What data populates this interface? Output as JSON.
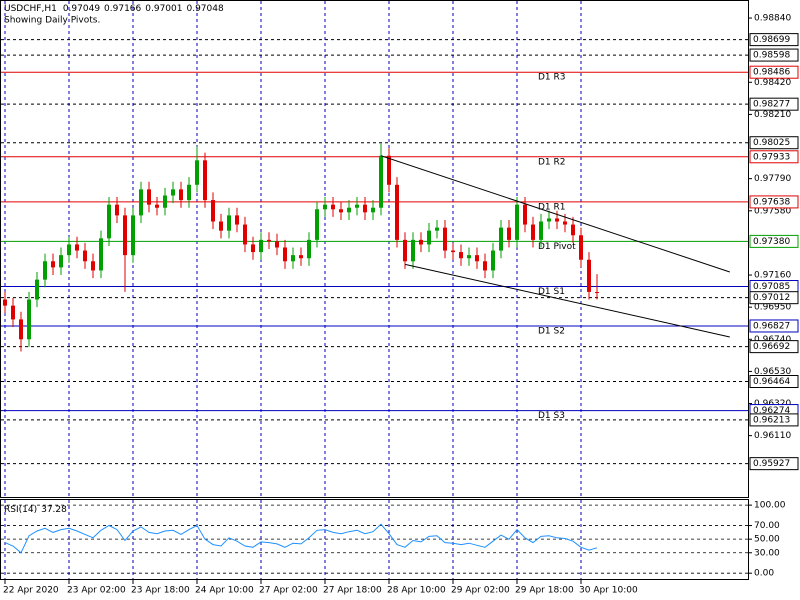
{
  "chart_data": {
    "type": "candlestick",
    "title": "USDCHF,H1",
    "subtitle": "Showing Daily Pivots.",
    "up_color": "#00a000",
    "down_color": "#e00000",
    "grid_color": "#0000c0",
    "vertical_grid": true,
    "xlim": [
      -0.625,
      92.875
    ],
    "xticks": [
      {
        "value": 0,
        "label": "22 Apr 2020"
      },
      {
        "value": 8,
        "label": "23 Apr 02:00"
      },
      {
        "value": 16,
        "label": "23 Apr 18:00"
      },
      {
        "value": 24,
        "label": "24 Apr 10:00"
      },
      {
        "value": 32,
        "label": "27 Apr 02:00"
      },
      {
        "value": 40,
        "label": "27 Apr 18:00"
      },
      {
        "value": 48,
        "label": "28 Apr 10:00"
      },
      {
        "value": 56,
        "label": "29 Apr 02:00"
      },
      {
        "value": 64,
        "label": "29 Apr 18:00"
      },
      {
        "value": 72,
        "label": "30 Apr 10:00"
      }
    ],
    "ylim": [
      0.95709,
      0.98958
    ],
    "yticks": [
      {
        "value": 0.9884,
        "label": "0.98840"
      },
      {
        "value": 0.9842,
        "label": "0.98420"
      },
      {
        "value": 0.9821,
        "label": "0.98210"
      },
      {
        "value": 0.9779,
        "label": "0.97790"
      },
      {
        "value": 0.9758,
        "label": "0.97580"
      },
      {
        "value": 0.9716,
        "label": "0.97160"
      },
      {
        "value": 0.9695,
        "label": "0.96950"
      },
      {
        "value": 0.9674,
        "label": "0.96740"
      },
      {
        "value": 0.9653,
        "label": "0.96530"
      },
      {
        "value": 0.9632,
        "label": "0.96320"
      },
      {
        "value": 0.9611,
        "label": "0.96110"
      }
    ],
    "open": [
      0.97,
      0.9696,
      0.9687,
      0.9674,
      0.97,
      0.9713,
      0.9725,
      0.9721,
      0.9729,
      0.9736,
      0.9732,
      0.9725,
      0.9719,
      0.974,
      0.9762,
      0.9755,
      0.9729,
      0.9755,
      0.9772,
      0.9762,
      0.976,
      0.9768,
      0.9772,
      0.9765,
      0.9775,
      0.9791,
      0.9765,
      0.9751,
      0.9745,
      0.9755,
      0.9749,
      0.9736,
      0.9731,
      0.9739,
      0.9738,
      0.9734,
      0.9725,
      0.9729,
      0.9727,
      0.9739,
      0.9759,
      0.9762,
      0.9759,
      0.9757,
      0.976,
      0.9762,
      0.9757,
      0.976,
      0.9794,
      0.9775,
      0.9739,
      0.9725,
      0.9739,
      0.9736,
      0.9745,
      0.9747,
      0.9732,
      0.9731,
      0.9727,
      0.9729,
      0.9725,
      0.9719,
      0.9732,
      0.9747,
      0.9739,
      0.9762,
      0.9749,
      0.9739,
      0.9751,
      0.9753,
      0.9751,
      0.9749,
      0.9742,
      0.9726,
      0.97049
    ],
    "high": [
      0.9705,
      0.9701,
      0.9692,
      0.9705,
      0.9718,
      0.973,
      0.973,
      0.9734,
      0.9741,
      0.9741,
      0.9737,
      0.973,
      0.9745,
      0.9767,
      0.9767,
      0.976,
      0.976,
      0.9777,
      0.9777,
      0.9767,
      0.9773,
      0.9777,
      0.9777,
      0.978,
      0.98,
      0.9796,
      0.977,
      0.9756,
      0.976,
      0.976,
      0.9754,
      0.9741,
      0.9744,
      0.9744,
      0.9743,
      0.9739,
      0.9734,
      0.9734,
      0.9744,
      0.9764,
      0.9767,
      0.9767,
      0.9764,
      0.9765,
      0.9767,
      0.9767,
      0.9765,
      0.9802,
      0.9799,
      0.978,
      0.9744,
      0.9744,
      0.9744,
      0.975,
      0.9752,
      0.9752,
      0.9737,
      0.9736,
      0.9734,
      0.9734,
      0.973,
      0.9737,
      0.9752,
      0.9752,
      0.9767,
      0.9767,
      0.9754,
      0.9756,
      0.9758,
      0.9758,
      0.9756,
      0.9754,
      0.9747,
      0.9731,
      0.97166
    ],
    "low": [
      0.9691,
      0.9682,
      0.9666,
      0.9669,
      0.9695,
      0.9708,
      0.9716,
      0.9716,
      0.9724,
      0.9727,
      0.972,
      0.9714,
      0.9714,
      0.9735,
      0.975,
      0.9705,
      0.9724,
      0.975,
      0.9757,
      0.9755,
      0.9755,
      0.9763,
      0.976,
      0.976,
      0.977,
      0.976,
      0.9746,
      0.974,
      0.974,
      0.9744,
      0.9731,
      0.9726,
      0.9726,
      0.9733,
      0.9729,
      0.972,
      0.972,
      0.9722,
      0.9722,
      0.9734,
      0.9754,
      0.9754,
      0.9752,
      0.9752,
      0.9755,
      0.9752,
      0.9752,
      0.9755,
      0.977,
      0.9734,
      0.972,
      0.972,
      0.9731,
      0.9731,
      0.974,
      0.9727,
      0.9726,
      0.9722,
      0.9722,
      0.972,
      0.9714,
      0.9714,
      0.9727,
      0.9734,
      0.9734,
      0.9744,
      0.9734,
      0.9734,
      0.9746,
      0.9746,
      0.9744,
      0.9737,
      0.9721,
      0.97,
      0.97001
    ],
    "close": [
      0.9696,
      0.9687,
      0.9674,
      0.97,
      0.9713,
      0.9725,
      0.9721,
      0.9729,
      0.9736,
      0.9732,
      0.9725,
      0.9719,
      0.974,
      0.9762,
      0.9755,
      0.9729,
      0.9755,
      0.9772,
      0.9762,
      0.976,
      0.9768,
      0.9772,
      0.9765,
      0.9775,
      0.9791,
      0.9765,
      0.9751,
      0.9745,
      0.9755,
      0.9749,
      0.9736,
      0.9731,
      0.9739,
      0.9738,
      0.9734,
      0.9725,
      0.9729,
      0.9727,
      0.9739,
      0.9759,
      0.9762,
      0.9759,
      0.9757,
      0.976,
      0.9762,
      0.9757,
      0.976,
      0.9794,
      0.9775,
      0.9739,
      0.9725,
      0.9739,
      0.9736,
      0.9745,
      0.9747,
      0.9732,
      0.9731,
      0.9727,
      0.9729,
      0.9725,
      0.9719,
      0.9732,
      0.9747,
      0.9739,
      0.9762,
      0.9749,
      0.9739,
      0.9751,
      0.9753,
      0.9751,
      0.9749,
      0.9742,
      0.9726,
      0.9705,
      0.97048
    ],
    "levels": [
      {
        "value": 0.98699,
        "label": "0.98699",
        "color": "#000000",
        "style": "dashed"
      },
      {
        "value": 0.98598,
        "label": "0.98598",
        "color": "#000000",
        "style": "dashed"
      },
      {
        "name": "D1 R3",
        "value": 0.98486,
        "label": "0.98486",
        "color": "#e00000",
        "style": "solid"
      },
      {
        "value": 0.98277,
        "label": "0.98277",
        "color": "#000000",
        "style": "dashed"
      },
      {
        "value": 0.98025,
        "label": "0.98025",
        "color": "#000000",
        "style": "dashed"
      },
      {
        "name": "D1 R2",
        "value": 0.97933,
        "label": "0.97933",
        "color": "#e00000",
        "style": "solid"
      },
      {
        "name": "D1 R1",
        "value": 0.97638,
        "label": "0.97638",
        "color": "#e00000",
        "style": "solid"
      },
      {
        "name": "D1 Pivot",
        "value": 0.9738,
        "label": "0.97380",
        "color": "#00a000",
        "style": "solid"
      },
      {
        "name": "D1 S1",
        "value": 0.97085,
        "label": "0.97085",
        "color": "#0000c0",
        "style": "solid"
      },
      {
        "value": 0.97012,
        "label": "0.97012",
        "color": "#000000",
        "style": "dashed"
      },
      {
        "name": "D1 S2",
        "value": 0.96827,
        "label": "0.96827",
        "color": "#0000c0",
        "style": "solid"
      },
      {
        "value": 0.96692,
        "label": "0.96692",
        "color": "#000000",
        "style": "dashed"
      },
      {
        "value": 0.96464,
        "label": "0.96464",
        "color": "#000000",
        "style": "dashed"
      },
      {
        "name": "D1 S3",
        "value": 0.96274,
        "label": "0.96274",
        "color": "#0000c0",
        "style": "solid"
      },
      {
        "value": 0.96213,
        "label": "0.96213",
        "color": "#000000",
        "style": "dashed"
      },
      {
        "value": 0.95927,
        "label": "0.95927",
        "color": "#000000",
        "style": "dashed"
      }
    ],
    "trendlines": [
      {
        "x": [
          47,
          90.6
        ],
        "y": [
          0.9794,
          0.9718
        ],
        "color": "#000000"
      },
      {
        "x": [
          50,
          90.6
        ],
        "y": [
          0.9723,
          0.96755
        ],
        "color": "#000000"
      }
    ],
    "rsi": {
      "name": "RSI(14)",
      "color": "#1e90ff",
      "ylim": [
        -10,
        109
      ],
      "yticks": [
        {
          "value": 100,
          "label": "100.00"
        },
        {
          "value": 70,
          "label": "70.00"
        },
        {
          "value": 50,
          "label": "50.00"
        },
        {
          "value": 30,
          "label": "30.00"
        },
        {
          "value": 0,
          "label": "0.00"
        }
      ],
      "values": [
        45,
        40,
        30,
        55,
        62,
        66,
        60,
        64,
        66,
        62,
        57,
        52,
        63,
        70,
        64,
        48,
        62,
        68,
        60,
        58,
        62,
        63,
        57,
        64,
        70,
        50,
        42,
        40,
        52,
        47,
        40,
        38,
        46,
        45,
        43,
        38,
        44,
        43,
        52,
        63,
        64,
        60,
        58,
        61,
        63,
        58,
        61,
        72,
        58,
        42,
        38,
        48,
        46,
        54,
        55,
        45,
        44,
        42,
        44,
        41,
        38,
        47,
        56,
        50,
        64,
        52,
        45,
        54,
        55,
        52,
        51,
        47,
        38,
        34,
        37.28
      ]
    }
  }
}
